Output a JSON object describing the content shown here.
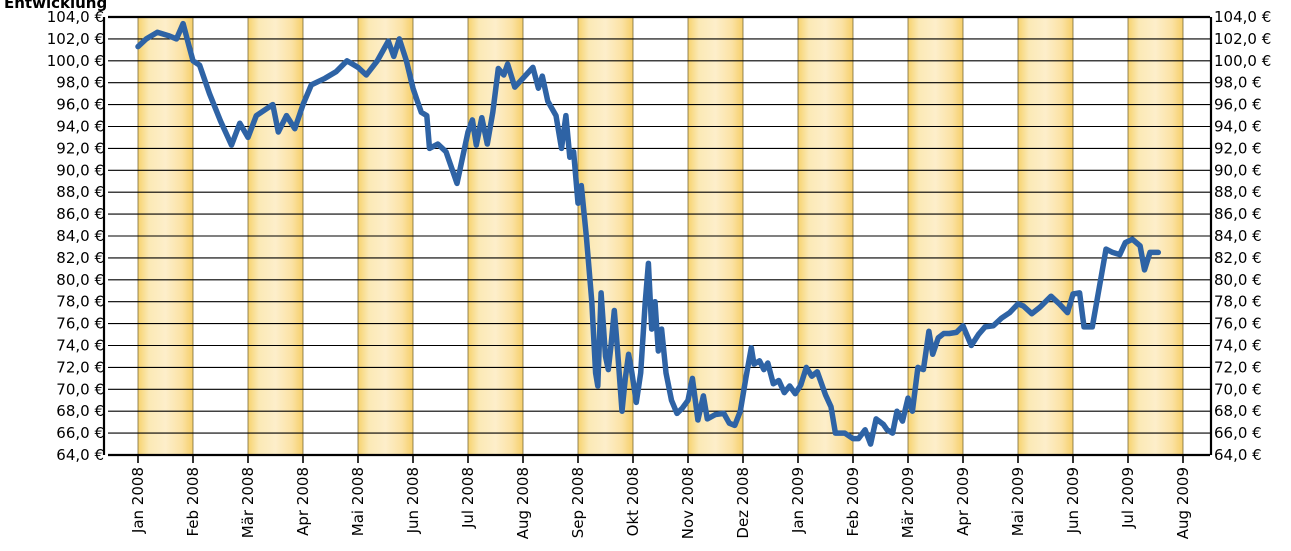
{
  "chart_data": {
    "type": "line",
    "title": "Entwicklung",
    "xlabel": "",
    "ylabel": "",
    "grid": "on",
    "legend": "none",
    "x_tick_labels": [
      "Jan 2008",
      "Feb 2008",
      "Mär 2008",
      "Apr 2008",
      "Mai 2008",
      "Jun 2008",
      "Jul 2008",
      "Aug 2008",
      "Sep 2008",
      "Okt 2008",
      "Nov 2008",
      "Dez 2008",
      "Jan 2009",
      "Feb 2009",
      "Mär 2009",
      "Apr 2009",
      "Mai 2009",
      "Jun 2009",
      "Jul 2009",
      "Aug 2009"
    ],
    "y_tick_labels": [
      "64,0 €",
      "66,0 €",
      "68,0 €",
      "70,0 €",
      "72,0 €",
      "74,0 €",
      "76,0 €",
      "78,0 €",
      "80,0 €",
      "82,0 €",
      "84,0 €",
      "86,0 €",
      "88,0 €",
      "90,0 €",
      "92,0 €",
      "94,0 €",
      "96,0 €",
      "98,0 €",
      "100,0 €",
      "102,0 €",
      "104,0 €"
    ],
    "ylim": [
      64,
      104
    ],
    "xlim": [
      0,
      19
    ],
    "x_unit": "months since Jan 2008",
    "series": [
      {
        "color": "#2e63a5",
        "points": [
          [
            0.0,
            101.3
          ],
          [
            0.15,
            102.0
          ],
          [
            0.35,
            102.6
          ],
          [
            0.55,
            102.3
          ],
          [
            0.7,
            102.0
          ],
          [
            0.82,
            103.4
          ],
          [
            0.92,
            101.5
          ],
          [
            1.0,
            100.0
          ],
          [
            1.12,
            99.6
          ],
          [
            1.3,
            97.0
          ],
          [
            1.5,
            94.5
          ],
          [
            1.7,
            92.3
          ],
          [
            1.85,
            94.3
          ],
          [
            2.0,
            93.0
          ],
          [
            2.15,
            95.0
          ],
          [
            2.3,
            95.5
          ],
          [
            2.45,
            96.0
          ],
          [
            2.55,
            93.5
          ],
          [
            2.7,
            95.0
          ],
          [
            2.85,
            93.8
          ],
          [
            3.0,
            96.0
          ],
          [
            3.15,
            97.8
          ],
          [
            3.4,
            98.4
          ],
          [
            3.6,
            99.0
          ],
          [
            3.8,
            100.0
          ],
          [
            4.0,
            99.4
          ],
          [
            4.15,
            98.7
          ],
          [
            4.35,
            100.0
          ],
          [
            4.55,
            101.8
          ],
          [
            4.65,
            100.4
          ],
          [
            4.75,
            102.0
          ],
          [
            4.88,
            100.0
          ],
          [
            5.0,
            97.5
          ],
          [
            5.08,
            96.3
          ],
          [
            5.15,
            95.3
          ],
          [
            5.25,
            95.0
          ],
          [
            5.3,
            92.0
          ],
          [
            5.45,
            92.4
          ],
          [
            5.6,
            91.7
          ],
          [
            5.8,
            88.8
          ],
          [
            6.0,
            93.5
          ],
          [
            6.08,
            94.6
          ],
          [
            6.15,
            92.3
          ],
          [
            6.25,
            94.8
          ],
          [
            6.35,
            92.4
          ],
          [
            6.45,
            95.3
          ],
          [
            6.55,
            99.3
          ],
          [
            6.65,
            98.7
          ],
          [
            6.72,
            99.7
          ],
          [
            6.85,
            97.6
          ],
          [
            7.0,
            98.4
          ],
          [
            7.18,
            99.4
          ],
          [
            7.28,
            97.5
          ],
          [
            7.35,
            98.6
          ],
          [
            7.45,
            96.3
          ],
          [
            7.6,
            95.0
          ],
          [
            7.7,
            92.0
          ],
          [
            7.78,
            95.0
          ],
          [
            7.85,
            91.2
          ],
          [
            7.92,
            91.7
          ],
          [
            8.0,
            87.0
          ],
          [
            8.06,
            88.6
          ],
          [
            8.15,
            84.0
          ],
          [
            8.25,
            78.0
          ],
          [
            8.32,
            71.5
          ],
          [
            8.36,
            70.3
          ],
          [
            8.42,
            78.8
          ],
          [
            8.5,
            73.0
          ],
          [
            8.55,
            71.8
          ],
          [
            8.6,
            74.0
          ],
          [
            8.66,
            77.2
          ],
          [
            8.72,
            73.5
          ],
          [
            8.8,
            68.0
          ],
          [
            8.86,
            71.0
          ],
          [
            8.92,
            73.2
          ],
          [
            8.98,
            71.5
          ],
          [
            9.06,
            68.8
          ],
          [
            9.14,
            71.5
          ],
          [
            9.22,
            77.8
          ],
          [
            9.28,
            81.5
          ],
          [
            9.34,
            75.5
          ],
          [
            9.4,
            78.0
          ],
          [
            9.46,
            73.5
          ],
          [
            9.52,
            75.5
          ],
          [
            9.6,
            71.5
          ],
          [
            9.7,
            69.0
          ],
          [
            9.8,
            67.8
          ],
          [
            9.9,
            68.3
          ],
          [
            10.0,
            69.0
          ],
          [
            10.08,
            71.0
          ],
          [
            10.18,
            67.2
          ],
          [
            10.28,
            69.4
          ],
          [
            10.35,
            67.3
          ],
          [
            10.5,
            67.7
          ],
          [
            10.65,
            67.8
          ],
          [
            10.75,
            66.9
          ],
          [
            10.85,
            66.7
          ],
          [
            10.95,
            68.0
          ],
          [
            11.05,
            71.0
          ],
          [
            11.15,
            73.8
          ],
          [
            11.2,
            72.3
          ],
          [
            11.3,
            72.6
          ],
          [
            11.38,
            71.8
          ],
          [
            11.45,
            72.4
          ],
          [
            11.55,
            70.5
          ],
          [
            11.65,
            70.8
          ],
          [
            11.75,
            69.7
          ],
          [
            11.85,
            70.3
          ],
          [
            11.95,
            69.6
          ],
          [
            12.05,
            70.4
          ],
          [
            12.15,
            72.0
          ],
          [
            12.25,
            71.2
          ],
          [
            12.35,
            71.6
          ],
          [
            12.5,
            69.5
          ],
          [
            12.6,
            68.4
          ],
          [
            12.68,
            66.0
          ],
          [
            12.85,
            66.0
          ],
          [
            13.0,
            65.5
          ],
          [
            13.1,
            65.5
          ],
          [
            13.22,
            66.3
          ],
          [
            13.32,
            65.0
          ],
          [
            13.42,
            67.3
          ],
          [
            13.55,
            66.8
          ],
          [
            13.62,
            66.3
          ],
          [
            13.72,
            66.0
          ],
          [
            13.8,
            68.0
          ],
          [
            13.9,
            67.1
          ],
          [
            14.0,
            69.2
          ],
          [
            14.08,
            68.0
          ],
          [
            14.18,
            72.0
          ],
          [
            14.28,
            71.8
          ],
          [
            14.38,
            75.3
          ],
          [
            14.45,
            73.2
          ],
          [
            14.55,
            74.7
          ],
          [
            14.65,
            75.1
          ],
          [
            14.75,
            75.1
          ],
          [
            14.88,
            75.2
          ],
          [
            15.0,
            75.8
          ],
          [
            15.15,
            74.0
          ],
          [
            15.28,
            75.0
          ],
          [
            15.4,
            75.7
          ],
          [
            15.55,
            75.8
          ],
          [
            15.7,
            76.5
          ],
          [
            15.85,
            77.0
          ],
          [
            16.0,
            77.8
          ],
          [
            16.1,
            77.6
          ],
          [
            16.25,
            76.9
          ],
          [
            16.4,
            77.5
          ],
          [
            16.6,
            78.5
          ],
          [
            16.75,
            77.8
          ],
          [
            16.9,
            77.0
          ],
          [
            17.0,
            78.7
          ],
          [
            17.12,
            78.8
          ],
          [
            17.2,
            75.7
          ],
          [
            17.35,
            75.7
          ],
          [
            17.52,
            80.5
          ],
          [
            17.6,
            82.8
          ],
          [
            17.72,
            82.5
          ],
          [
            17.85,
            82.3
          ],
          [
            17.95,
            83.4
          ],
          [
            18.08,
            83.7
          ],
          [
            18.22,
            83.1
          ],
          [
            18.3,
            80.9
          ],
          [
            18.4,
            82.5
          ],
          [
            18.55,
            82.5
          ]
        ]
      }
    ]
  }
}
